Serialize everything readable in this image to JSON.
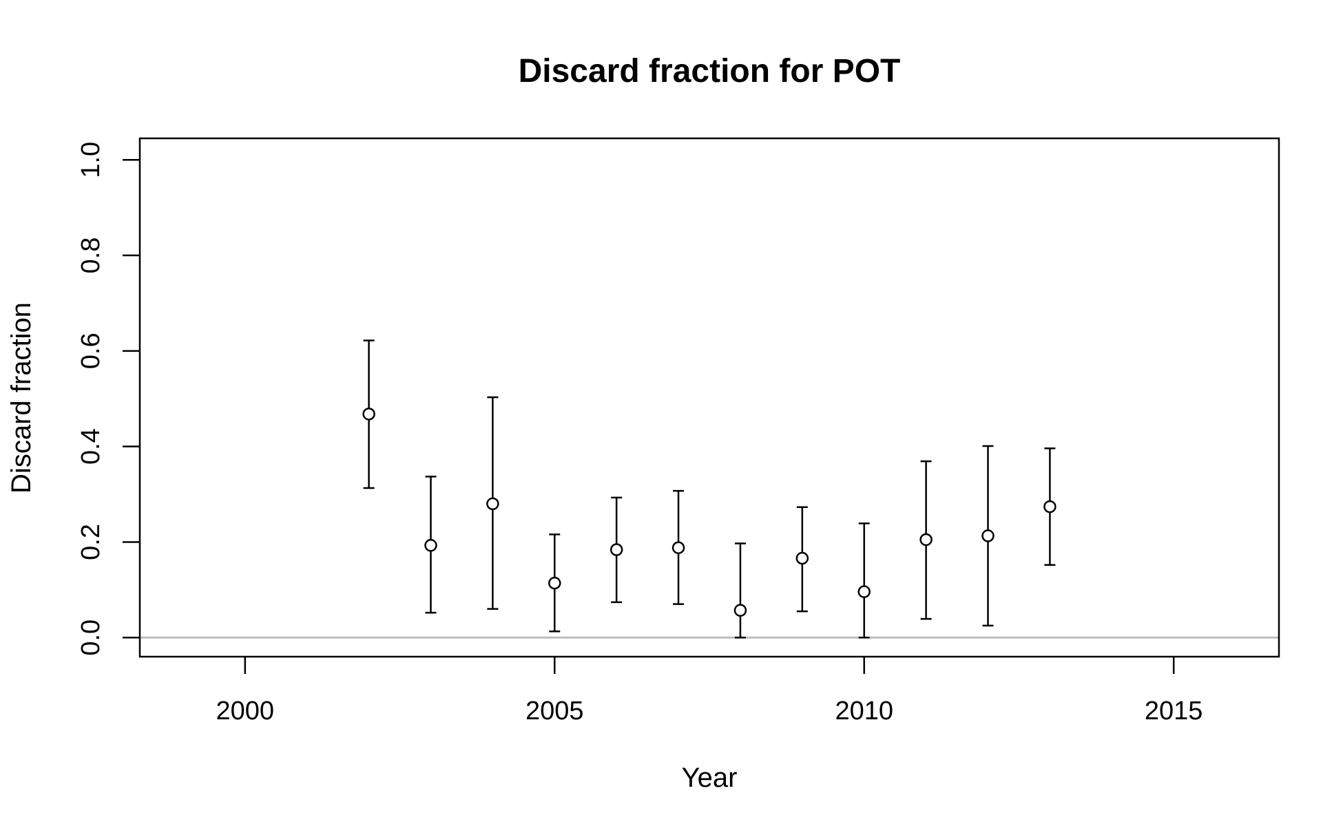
{
  "chart_data": {
    "type": "scatter",
    "title": "Discard fraction for POT",
    "xlabel": "Year",
    "ylabel": "Discard fraction",
    "xlim": [
      1998.3,
      2016.7
    ],
    "ylim": [
      -0.04,
      1.045
    ],
    "x_ticks": [
      "2000",
      "2005",
      "2010",
      "2015"
    ],
    "y_ticks": [
      "0.0",
      "0.2",
      "0.4",
      "0.6",
      "0.8",
      "1.0"
    ],
    "reference_line": {
      "y": 0.0,
      "color": "#bdbdbd"
    },
    "grid": false,
    "series": [
      {
        "x": [
          2002,
          2003,
          2004,
          2005,
          2006,
          2007,
          2008,
          2009,
          2010,
          2011,
          2012,
          2013
        ],
        "y": [
          0.468,
          0.193,
          0.28,
          0.114,
          0.184,
          0.188,
          0.057,
          0.166,
          0.096,
          0.205,
          0.213,
          0.274
        ],
        "lower": [
          0.313,
          0.052,
          0.06,
          0.013,
          0.074,
          0.07,
          0.0,
          0.055,
          0.0,
          0.039,
          0.025,
          0.152
        ],
        "upper": [
          0.622,
          0.337,
          0.503,
          0.216,
          0.293,
          0.307,
          0.197,
          0.273,
          0.239,
          0.369,
          0.401,
          0.396
        ]
      }
    ]
  }
}
